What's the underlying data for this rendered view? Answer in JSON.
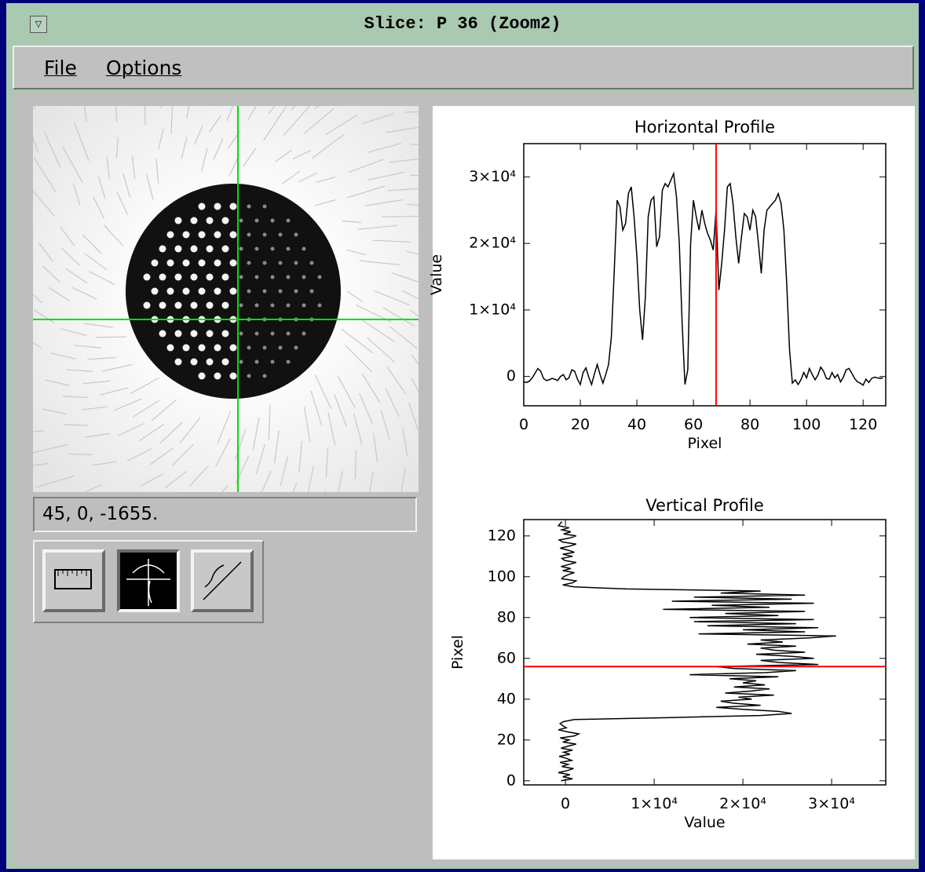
{
  "window": {
    "title": "Slice: P 36  (Zoom2)"
  },
  "menu": [
    "File",
    "Options"
  ],
  "status": "45, 0, -1655.",
  "chart_data": [
    {
      "type": "line",
      "orientation": "vertical",
      "title": "Horizontal Profile",
      "xlabel": "Pixel",
      "ylabel": "Value",
      "x": [
        0,
        1,
        2,
        3,
        4,
        5,
        6,
        7,
        8,
        9,
        10,
        11,
        12,
        13,
        14,
        15,
        16,
        17,
        18,
        19,
        20,
        21,
        22,
        23,
        24,
        25,
        26,
        27,
        28,
        29,
        30,
        31,
        32,
        33,
        34,
        35,
        36,
        37,
        38,
        39,
        40,
        41,
        42,
        43,
        44,
        45,
        46,
        47,
        48,
        49,
        50,
        51,
        52,
        53,
        54,
        55,
        56,
        57,
        58,
        59,
        60,
        61,
        62,
        63,
        64,
        65,
        66,
        67,
        68,
        69,
        70,
        71,
        72,
        73,
        74,
        75,
        76,
        77,
        78,
        79,
        80,
        81,
        82,
        83,
        84,
        85,
        86,
        87,
        88,
        89,
        90,
        91,
        92,
        93,
        94,
        95,
        96,
        97,
        98,
        99,
        100,
        101,
        102,
        103,
        104,
        105,
        106,
        107,
        108,
        109,
        110,
        111,
        112,
        113,
        114,
        115,
        116,
        117,
        118,
        119,
        120,
        121,
        122,
        123,
        124,
        125,
        126,
        127
      ],
      "values": [
        -800,
        -900,
        -700,
        -200,
        500,
        1200,
        800,
        -300,
        -600,
        -500,
        -300,
        -400,
        -600,
        0,
        300,
        -500,
        -200,
        1000,
        800,
        -400,
        -1200,
        600,
        1300,
        -100,
        -1200,
        400,
        1800,
        300,
        -1000,
        300,
        1800,
        6000,
        16000,
        26500,
        25500,
        22000,
        23000,
        27500,
        28500,
        24000,
        18000,
        10000,
        5500,
        12000,
        24000,
        26500,
        27000,
        19500,
        21000,
        28000,
        29000,
        28500,
        29500,
        30500,
        27000,
        20000,
        8000,
        -1200,
        1000,
        20000,
        26500,
        24000,
        22000,
        25000,
        23000,
        21500,
        20500,
        19000,
        25000,
        13000,
        17000,
        22000,
        28500,
        29000,
        26000,
        21000,
        17000,
        21000,
        24500,
        24000,
        22000,
        25000,
        24000,
        20000,
        15500,
        22000,
        25000,
        25500,
        26000,
        26500,
        27500,
        26000,
        22000,
        14000,
        4000,
        -1000,
        -500,
        -1200,
        -500,
        600,
        -200,
        1200,
        300,
        -500,
        200,
        1400,
        800,
        -300,
        -400,
        600,
        -200,
        300,
        -800,
        -100,
        1000,
        1200,
        500,
        -300,
        -800,
        -1000,
        -1300,
        -400,
        -900,
        -300,
        -100,
        -200,
        -300,
        -200
      ],
      "color": "#000000",
      "cursor": 68,
      "cursor_color": "#ff0000",
      "xlim": [
        0,
        128
      ],
      "xticks": [
        0,
        20,
        40,
        60,
        80,
        100,
        120
      ],
      "ylim": [
        -4400,
        35000
      ],
      "yticks": [
        0,
        {
          "value": 10000,
          "label": "1×10⁴"
        },
        {
          "value": 20000,
          "label": "2×10⁴"
        },
        {
          "value": 30000,
          "label": "3×10⁴"
        }
      ]
    },
    {
      "type": "line",
      "orientation": "horizontal",
      "title": "Vertical Profile",
      "xlabel": "Value",
      "ylabel": "Pixel",
      "x": [
        0,
        1,
        2,
        3,
        4,
        5,
        6,
        7,
        8,
        9,
        10,
        11,
        12,
        13,
        14,
        15,
        16,
        17,
        18,
        19,
        20,
        21,
        22,
        23,
        24,
        25,
        26,
        27,
        28,
        29,
        30,
        31,
        32,
        33,
        34,
        35,
        36,
        37,
        38,
        39,
        40,
        41,
        42,
        43,
        44,
        45,
        46,
        47,
        48,
        49,
        50,
        51,
        52,
        53,
        54,
        55,
        56,
        57,
        58,
        59,
        60,
        61,
        62,
        63,
        64,
        65,
        66,
        67,
        68,
        69,
        70,
        71,
        72,
        73,
        74,
        75,
        76,
        77,
        78,
        79,
        80,
        81,
        82,
        83,
        84,
        85,
        86,
        87,
        88,
        89,
        90,
        91,
        92,
        93,
        94,
        95,
        96,
        97,
        98,
        99,
        100,
        101,
        102,
        103,
        104,
        105,
        106,
        107,
        108,
        109,
        110,
        111,
        112,
        113,
        114,
        115,
        116,
        117,
        118,
        119,
        120,
        121,
        122,
        123,
        124,
        125,
        126,
        127
      ],
      "values": [
        -500,
        800,
        -300,
        500,
        -800,
        200,
        900,
        -400,
        300,
        -600,
        700,
        100,
        -700,
        500,
        -200,
        800,
        -500,
        300,
        1200,
        -300,
        400,
        -600,
        1000,
        1500,
        200,
        -800,
        100,
        -300,
        -600,
        -200,
        1000,
        12000,
        22000,
        25500,
        24000,
        20000,
        17000,
        22000,
        19000,
        17500,
        21000,
        19500,
        23500,
        18000,
        21000,
        23000,
        19000,
        22500,
        20000,
        21500,
        18500,
        24000,
        14000,
        22500,
        26000,
        19000,
        17000,
        28500,
        24000,
        22000,
        28000,
        25500,
        21500,
        27000,
        23500,
        22000,
        26000,
        20500,
        24500,
        22000,
        27500,
        30500,
        15000,
        27000,
        20000,
        28500,
        16000,
        26000,
        14500,
        28000,
        14000,
        24000,
        18000,
        27000,
        11000,
        23000,
        16500,
        28000,
        12000,
        25500,
        14500,
        27000,
        17500,
        22000,
        7000,
        1000,
        -300,
        800,
        1200,
        -400,
        -200,
        300,
        1000,
        -300,
        600,
        -500,
        400,
        1200,
        -100,
        -400,
        800,
        -300,
        1000,
        300,
        -600,
        500,
        1200,
        -300,
        -700,
        500,
        1200,
        -200,
        600,
        -400,
        400,
        -800,
        -600,
        -400
      ],
      "color": "#000000",
      "cursor": 56,
      "cursor_color": "#ff0000",
      "xlim": [
        -4700,
        36100
      ],
      "xticks": [
        0,
        {
          "value": 10000,
          "label": "1×10⁴"
        },
        {
          "value": 20000,
          "label": "2×10⁴"
        },
        {
          "value": 30000,
          "label": "3×10⁴"
        }
      ],
      "ylim": [
        -2,
        128
      ],
      "yticks": [
        0,
        20,
        40,
        60,
        80,
        100,
        120
      ]
    }
  ]
}
